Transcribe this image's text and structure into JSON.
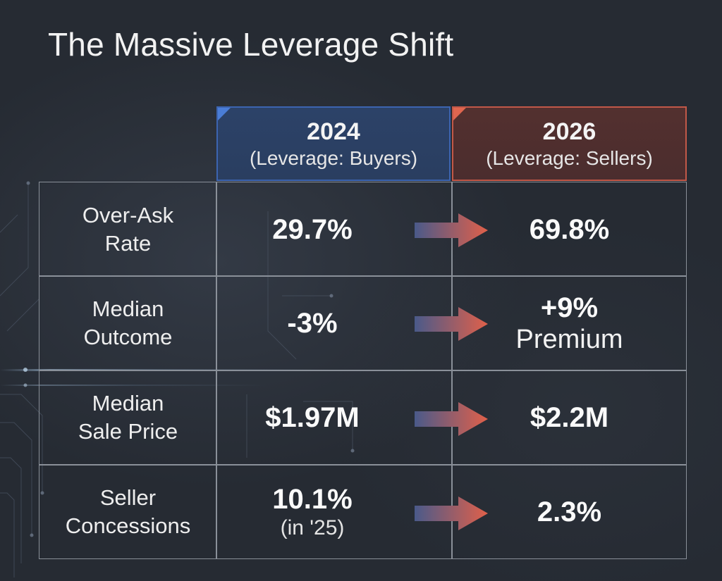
{
  "title": "The Massive Leverage Shift",
  "columns": [
    {
      "year": "2024",
      "subtitle": "(Leverage: Buyers)",
      "accent": "#3c64b0"
    },
    {
      "year": "2026",
      "subtitle": "(Leverage: Sellers)",
      "accent": "#c25848"
    }
  ],
  "rows": [
    {
      "label_line1": "Over-Ask",
      "label_line2": "Rate",
      "value_2024": "29.7%",
      "value_2026": "69.8%"
    },
    {
      "label_line1": "Median",
      "label_line2": "Outcome",
      "value_2024": "-3%",
      "value_2026": "+9%",
      "value_2026_note": "Premium"
    },
    {
      "label_line1": "Median",
      "label_line2": "Sale Price",
      "value_2024": "$1.97M",
      "value_2026": "$2.2M"
    },
    {
      "label_line1": "Seller",
      "label_line2": "Concessions",
      "value_2024": "10.1%",
      "value_2024_note": "(in '25)",
      "value_2026": "2.3%"
    }
  ],
  "arrow_colors": {
    "start": "#4a5a8a",
    "end": "#e0604a"
  }
}
